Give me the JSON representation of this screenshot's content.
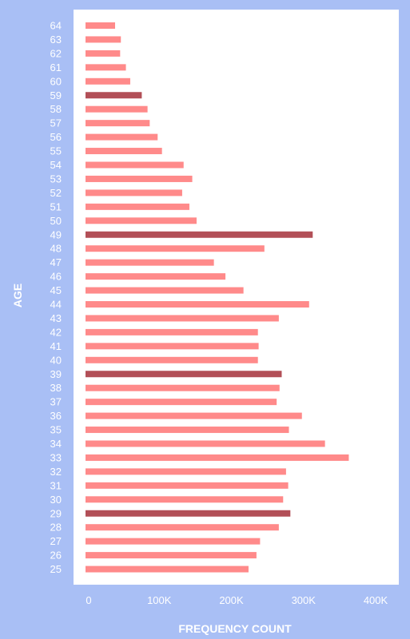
{
  "chart_data": {
    "type": "bar",
    "orientation": "horizontal",
    "xlabel": "FREQUENCY COUNT",
    "ylabel": "AGE",
    "xlim": [
      0,
      400000
    ],
    "x_ticks": [
      0,
      100000,
      200000,
      300000,
      400000
    ],
    "x_tick_labels": [
      "0",
      "100K",
      "200K",
      "300K",
      "400K"
    ],
    "grid": false,
    "categories": [
      "64",
      "63",
      "62",
      "61",
      "60",
      "59",
      "58",
      "57",
      "56",
      "55",
      "54",
      "53",
      "52",
      "51",
      "50",
      "49",
      "48",
      "47",
      "46",
      "45",
      "44",
      "43",
      "42",
      "41",
      "40",
      "39",
      "38",
      "37",
      "36",
      "35",
      "34",
      "33",
      "32",
      "31",
      "30",
      "29",
      "28",
      "27",
      "26",
      "25"
    ],
    "values": [
      41000,
      49000,
      48000,
      56000,
      62000,
      78000,
      86000,
      89000,
      100000,
      106000,
      136000,
      148000,
      134000,
      144000,
      154000,
      315000,
      248000,
      178000,
      194000,
      219000,
      310000,
      268000,
      239000,
      240000,
      239000,
      272000,
      269000,
      265000,
      300000,
      282000,
      332000,
      365000,
      278000,
      281000,
      274000,
      284000,
      268000,
      242000,
      237000,
      226000
    ],
    "highlighted": [
      "59",
      "49",
      "39",
      "29"
    ],
    "colors": {
      "bar": "#ff8a8a",
      "highlight": "#b24f57",
      "plot_background": "#ffffff",
      "page_background": "#a9bff5",
      "text": "#ffffff"
    }
  }
}
